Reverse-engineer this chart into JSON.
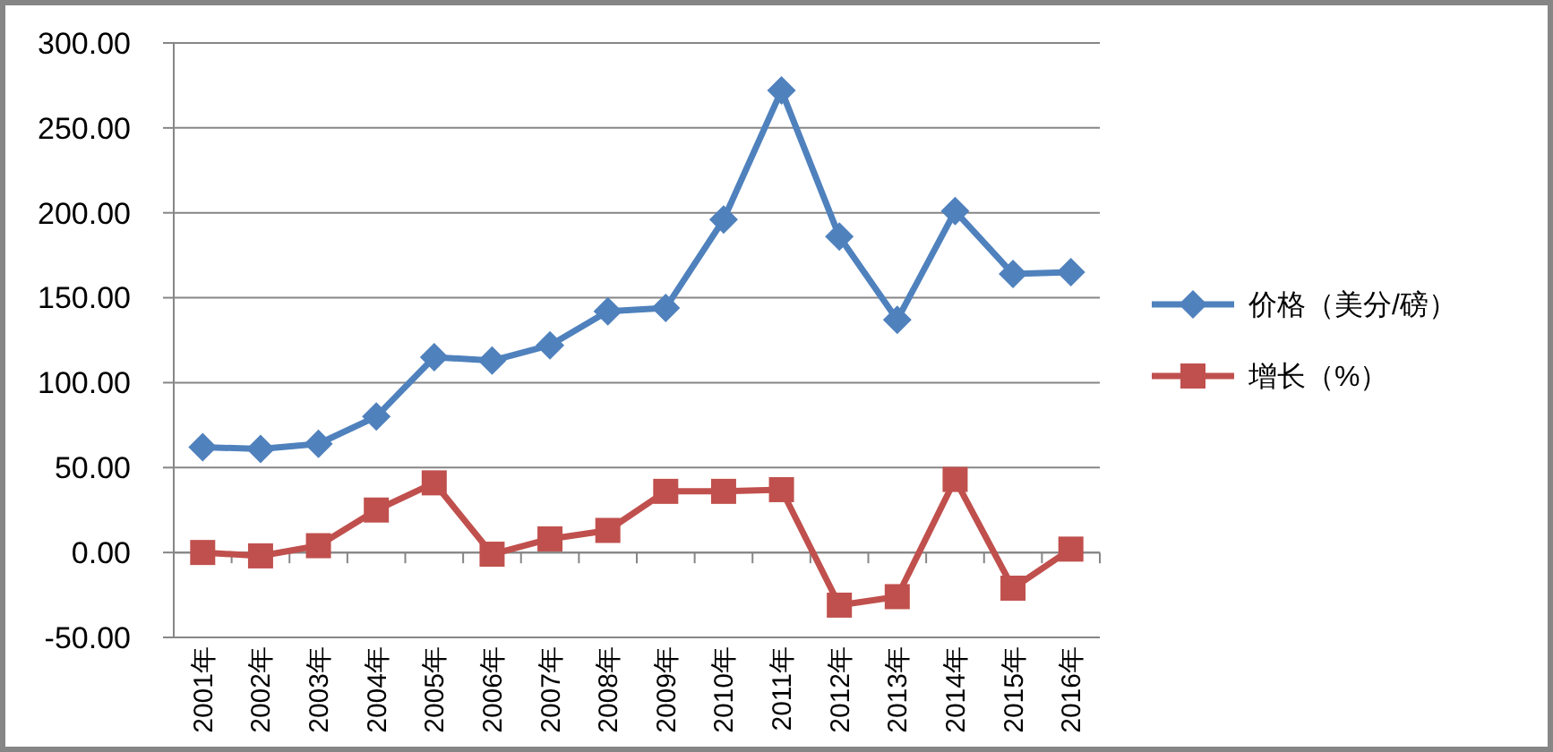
{
  "chart_data": {
    "type": "line",
    "categories": [
      "2001年",
      "2002年",
      "2003年",
      "2004年",
      "2005年",
      "2006年",
      "2007年",
      "2008年",
      "2009年",
      "2010年",
      "2011年",
      "2012年",
      "2013年",
      "2014年",
      "2015年",
      "2016年"
    ],
    "series": [
      {
        "name": "价格（美分/磅）",
        "color": "#4f81bd",
        "marker": "diamond",
        "values": [
          62,
          61,
          64,
          80,
          115,
          113,
          122,
          142,
          144,
          196,
          272,
          186,
          137,
          201,
          164,
          165
        ]
      },
      {
        "name": "增长（%）",
        "color": "#c0504d",
        "marker": "square",
        "values": [
          0,
          -2,
          4,
          25,
          41,
          -1,
          8,
          13,
          36,
          36,
          37,
          -31,
          -26,
          43,
          -21,
          2
        ]
      }
    ],
    "ylim": [
      -50,
      300
    ],
    "yticks": [
      {
        "value": -50,
        "label": "-50.00"
      },
      {
        "value": 0,
        "label": "0.00"
      },
      {
        "value": 50,
        "label": "50.00"
      },
      {
        "value": 100,
        "label": "100.00"
      },
      {
        "value": 150,
        "label": "150.00"
      },
      {
        "value": 200,
        "label": "200.00"
      },
      {
        "value": 250,
        "label": "250.00"
      },
      {
        "value": 300,
        "label": "300.00"
      }
    ],
    "grid": "y",
    "legend": "right",
    "line_style": "solid"
  }
}
